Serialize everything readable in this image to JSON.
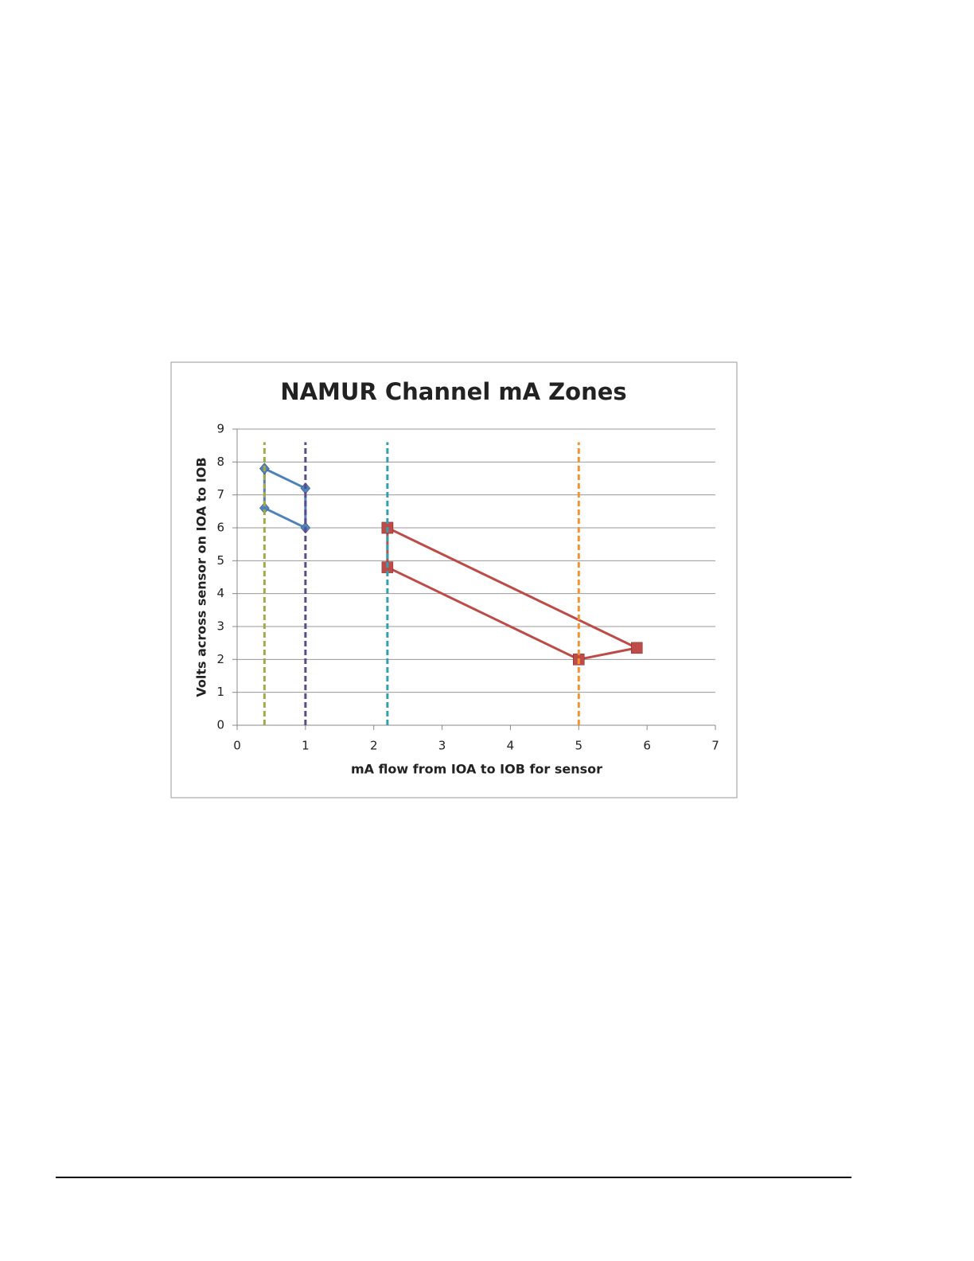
{
  "chart_data": {
    "type": "line",
    "title": "NAMUR Channel mA Zones",
    "x_label": "mA flow from IOA to IOB for sensor",
    "y_label": "Volts across sensor on IOA to IOB",
    "xlim": [
      0,
      7
    ],
    "xticks": [
      0,
      1,
      2,
      3,
      4,
      5,
      6,
      7
    ],
    "ylim": [
      0,
      9
    ],
    "yticks": [
      0,
      1,
      2,
      3,
      4,
      5,
      6,
      7,
      8,
      9
    ],
    "grid": true,
    "series": [
      {
        "color": "#4f81bd",
        "marker": "diamond",
        "dashed": false,
        "x": [
          0.4,
          1,
          1,
          0.4,
          0.4
        ],
        "values": [
          7.8,
          7.2,
          6,
          6.6,
          7.8
        ]
      },
      {
        "color": "#be4b48",
        "marker": "square",
        "dashed": false,
        "x": [
          2.2,
          5.85,
          5,
          2.2,
          2.2
        ],
        "values": [
          6,
          2.35,
          2,
          4.8,
          6
        ]
      },
      {
        "color": "#a3a848",
        "marker": "none",
        "dashed": true,
        "x": [
          0.4,
          0.4
        ],
        "values": [
          0,
          8.6
        ]
      },
      {
        "color": "#5b4a8c",
        "marker": "none",
        "dashed": true,
        "x": [
          1,
          1
        ],
        "values": [
          0,
          8.6
        ]
      },
      {
        "color": "#2fa0b0",
        "marker": "none",
        "dashed": true,
        "x": [
          2.2,
          2.2
        ],
        "values": [
          0,
          8.6
        ]
      },
      {
        "color": "#f59331",
        "marker": "none",
        "dashed": true,
        "x": [
          5,
          5
        ],
        "values": [
          0,
          8.6
        ]
      }
    ]
  }
}
